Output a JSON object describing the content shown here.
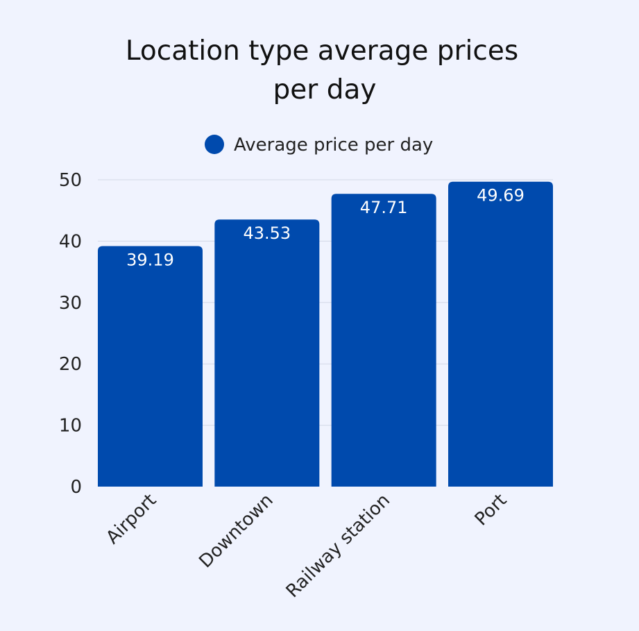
{
  "chart_data": {
    "type": "bar",
    "title_lines": [
      "Location type average prices",
      "per day"
    ],
    "categories": [
      "Airport",
      "Downtown",
      "Railway station",
      "Port"
    ],
    "series": [
      {
        "name": "Average price per day",
        "values": [
          39.19,
          43.53,
          47.71,
          49.69
        ],
        "color": "#004aad"
      }
    ],
    "data_labels": [
      "39.19",
      "43.53",
      "47.71",
      "49.69"
    ],
    "xlabel": "",
    "ylabel": "",
    "ylim": [
      0,
      50
    ],
    "yticks": [
      0,
      10,
      20,
      30,
      40,
      50
    ],
    "grid": true,
    "legend": "top-center",
    "background": "#f0f3fe",
    "grid_color": "#d3d8e6"
  }
}
